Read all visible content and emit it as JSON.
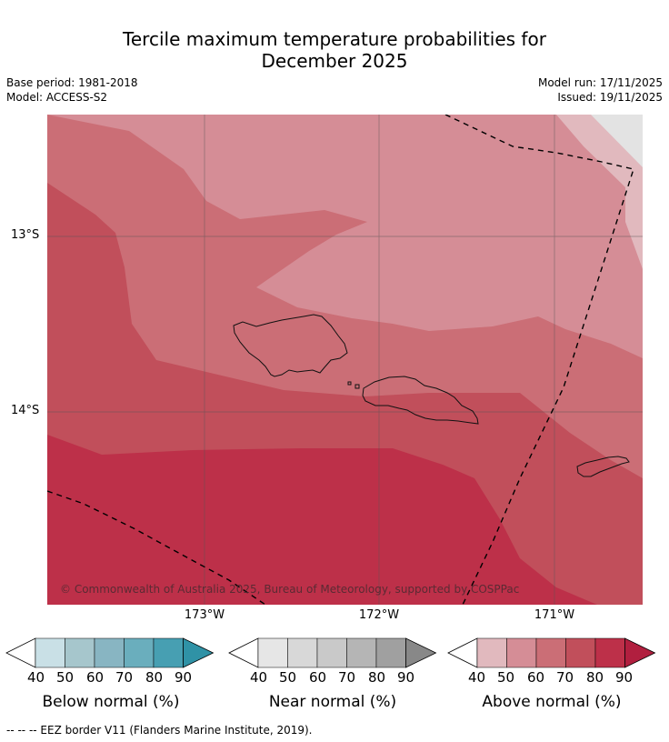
{
  "title_line1": "Tercile maximum temperature probabilities for",
  "title_line2": "December 2025",
  "meta": {
    "base_period": "Base period: 1981-2018",
    "model": "Model: ACCESS-S2",
    "model_run": "Model run: 17/11/2025",
    "issued": "Issued: 19/11/2025"
  },
  "axes": {
    "lat_labels": [
      "13°S",
      "14°S"
    ],
    "lon_labels": [
      "173°W",
      "172°W",
      "171°W"
    ]
  },
  "copyright": "© Commonwealth of Australia 2025, Bureau of Meteorology, supported by COSPPac",
  "colorbars": [
    {
      "label": "Below normal (%)",
      "ticks": [
        "40",
        "50",
        "60",
        "70",
        "80",
        "90"
      ],
      "colors": [
        "#ffffff",
        "#c9e0e6",
        "#a6c6cc",
        "#88b5c2",
        "#6aaebd",
        "#479fb2",
        "#2f92a6"
      ]
    },
    {
      "label": "Near normal (%)",
      "ticks": [
        "40",
        "50",
        "60",
        "70",
        "80",
        "90"
      ],
      "colors": [
        "#ffffff",
        "#e6e6e6",
        "#d8d8d8",
        "#c9c9c9",
        "#b5b5b5",
        "#a0a0a0",
        "#888888"
      ]
    },
    {
      "label": "Above normal (%)",
      "ticks": [
        "40",
        "50",
        "60",
        "70",
        "80",
        "90"
      ],
      "colors": [
        "#ffffff",
        "#e1b9be",
        "#d58d96",
        "#cb6e76",
        "#c14f5b",
        "#bd3049",
        "#b11f3f"
      ]
    }
  ],
  "footer": "--  --  -- EEZ border V11 (Flanders Marine Institute, 2019).",
  "map_colors": {
    "above_50": "#e1b9be",
    "above_60": "#d58d96",
    "above_70": "#cb6e76",
    "above_80": "#c14f5b",
    "above_90": "#bd3049",
    "no_data": "#e3e3e3"
  }
}
